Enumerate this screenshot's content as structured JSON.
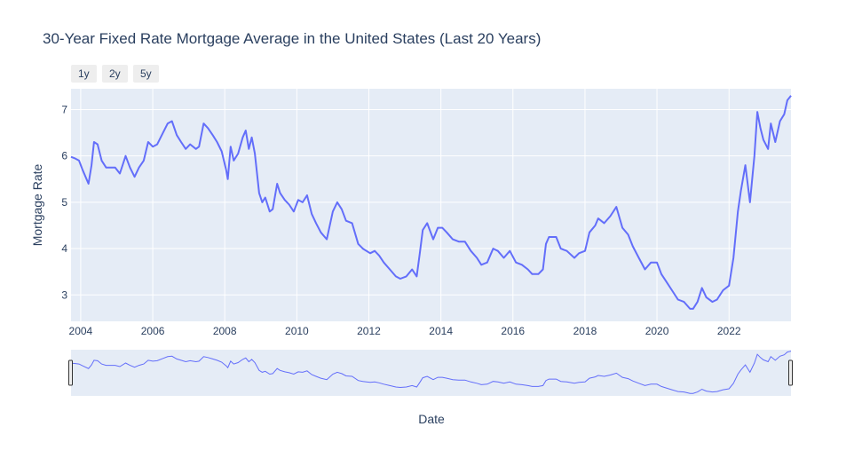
{
  "title": "30-Year Fixed Rate Mortgage Average in the United States (Last 20 Years)",
  "range_buttons": [
    "1y",
    "2y",
    "5y"
  ],
  "colors": {
    "line": "#636efa",
    "plot_bg": "#e5ecf6",
    "grid": "#ffffff",
    "text": "#2a3f5f"
  },
  "chart_data": {
    "type": "line",
    "title": "30-Year Fixed Rate Mortgage Average in the United States (Last 20 Years)",
    "xlabel": "Date",
    "ylabel": "Mortgage Rate",
    "x_ticks": [
      "2004",
      "2006",
      "2008",
      "2010",
      "2012",
      "2014",
      "2016",
      "2018",
      "2020",
      "2022"
    ],
    "y_ticks": [
      3,
      4,
      5,
      6,
      7
    ],
    "xlim": [
      "2003-09-25",
      "2023-09-21"
    ],
    "ylim": [
      2.43,
      7.45
    ],
    "grid": true,
    "range_slider": true,
    "series": [
      {
        "points": [
          [
            "2003-09-25",
            5.98
          ],
          [
            "2003-11-01",
            5.95
          ],
          [
            "2003-12-15",
            5.9
          ],
          [
            "2004-01-20",
            5.7
          ],
          [
            "2004-03-20",
            5.4
          ],
          [
            "2004-04-20",
            5.8
          ],
          [
            "2004-05-15",
            6.3
          ],
          [
            "2004-06-20",
            6.25
          ],
          [
            "2004-08-01",
            5.9
          ],
          [
            "2004-09-15",
            5.75
          ],
          [
            "2004-11-01",
            5.75
          ],
          [
            "2004-12-15",
            5.75
          ],
          [
            "2005-02-01",
            5.62
          ],
          [
            "2005-04-01",
            6.0
          ],
          [
            "2005-05-15",
            5.75
          ],
          [
            "2005-07-01",
            5.55
          ],
          [
            "2005-08-15",
            5.75
          ],
          [
            "2005-10-01",
            5.9
          ],
          [
            "2005-11-15",
            6.3
          ],
          [
            "2006-01-01",
            6.2
          ],
          [
            "2006-02-15",
            6.25
          ],
          [
            "2006-04-15",
            6.5
          ],
          [
            "2006-06-01",
            6.7
          ],
          [
            "2006-07-15",
            6.75
          ],
          [
            "2006-09-01",
            6.45
          ],
          [
            "2006-10-15",
            6.3
          ],
          [
            "2006-12-01",
            6.15
          ],
          [
            "2007-01-15",
            6.25
          ],
          [
            "2007-03-15",
            6.15
          ],
          [
            "2007-04-15",
            6.2
          ],
          [
            "2007-06-01",
            6.7
          ],
          [
            "2007-07-15",
            6.6
          ],
          [
            "2007-09-01",
            6.45
          ],
          [
            "2007-10-15",
            6.3
          ],
          [
            "2007-12-01",
            6.1
          ],
          [
            "2008-01-15",
            5.7
          ],
          [
            "2008-02-01",
            5.5
          ],
          [
            "2008-03-01",
            6.2
          ],
          [
            "2008-04-01",
            5.9
          ],
          [
            "2008-05-15",
            6.05
          ],
          [
            "2008-07-01",
            6.4
          ],
          [
            "2008-08-01",
            6.55
          ],
          [
            "2008-09-01",
            6.15
          ],
          [
            "2008-10-01",
            6.4
          ],
          [
            "2008-11-01",
            6.05
          ],
          [
            "2008-12-15",
            5.2
          ],
          [
            "2009-01-15",
            5.0
          ],
          [
            "2009-02-15",
            5.1
          ],
          [
            "2009-04-01",
            4.8
          ],
          [
            "2009-05-01",
            4.85
          ],
          [
            "2009-06-15",
            5.4
          ],
          [
            "2009-07-15",
            5.2
          ],
          [
            "2009-09-01",
            5.05
          ],
          [
            "2009-10-15",
            4.95
          ],
          [
            "2009-12-01",
            4.8
          ],
          [
            "2010-01-15",
            5.05
          ],
          [
            "2010-03-01",
            5.0
          ],
          [
            "2010-04-15",
            5.15
          ],
          [
            "2010-06-01",
            4.75
          ],
          [
            "2010-07-15",
            4.55
          ],
          [
            "2010-09-01",
            4.35
          ],
          [
            "2010-11-01",
            4.2
          ],
          [
            "2011-01-01",
            4.8
          ],
          [
            "2011-02-15",
            5.0
          ],
          [
            "2011-04-01",
            4.85
          ],
          [
            "2011-05-15",
            4.6
          ],
          [
            "2011-07-15",
            4.55
          ],
          [
            "2011-09-15",
            4.1
          ],
          [
            "2011-11-01",
            4.0
          ],
          [
            "2012-01-15",
            3.9
          ],
          [
            "2012-03-01",
            3.95
          ],
          [
            "2012-04-15",
            3.85
          ],
          [
            "2012-06-01",
            3.7
          ],
          [
            "2012-08-01",
            3.55
          ],
          [
            "2012-10-01",
            3.4
          ],
          [
            "2012-11-15",
            3.35
          ],
          [
            "2013-01-15",
            3.4
          ],
          [
            "2013-03-15",
            3.55
          ],
          [
            "2013-05-01",
            3.4
          ],
          [
            "2013-06-01",
            3.9
          ],
          [
            "2013-07-01",
            4.4
          ],
          [
            "2013-08-15",
            4.55
          ],
          [
            "2013-10-15",
            4.2
          ],
          [
            "2013-12-01",
            4.45
          ],
          [
            "2014-01-15",
            4.45
          ],
          [
            "2014-03-01",
            4.35
          ],
          [
            "2014-05-01",
            4.2
          ],
          [
            "2014-07-01",
            4.15
          ],
          [
            "2014-09-01",
            4.15
          ],
          [
            "2014-11-01",
            3.95
          ],
          [
            "2015-01-01",
            3.8
          ],
          [
            "2015-02-15",
            3.65
          ],
          [
            "2015-04-15",
            3.7
          ],
          [
            "2015-06-15",
            4.0
          ],
          [
            "2015-08-01",
            3.95
          ],
          [
            "2015-10-01",
            3.8
          ],
          [
            "2015-12-01",
            3.95
          ],
          [
            "2016-02-01",
            3.7
          ],
          [
            "2016-04-01",
            3.65
          ],
          [
            "2016-06-01",
            3.55
          ],
          [
            "2016-07-15",
            3.45
          ],
          [
            "2016-09-15",
            3.45
          ],
          [
            "2016-11-01",
            3.55
          ],
          [
            "2016-12-01",
            4.1
          ],
          [
            "2017-01-01",
            4.25
          ],
          [
            "2017-03-15",
            4.25
          ],
          [
            "2017-05-01",
            4.0
          ],
          [
            "2017-07-01",
            3.95
          ],
          [
            "2017-09-15",
            3.8
          ],
          [
            "2017-11-01",
            3.9
          ],
          [
            "2018-01-01",
            3.95
          ],
          [
            "2018-02-15",
            4.35
          ],
          [
            "2018-04-15",
            4.5
          ],
          [
            "2018-05-15",
            4.65
          ],
          [
            "2018-07-15",
            4.55
          ],
          [
            "2018-09-15",
            4.7
          ],
          [
            "2018-11-15",
            4.9
          ],
          [
            "2019-01-15",
            4.45
          ],
          [
            "2019-03-15",
            4.3
          ],
          [
            "2019-05-01",
            4.05
          ],
          [
            "2019-07-01",
            3.8
          ],
          [
            "2019-09-01",
            3.55
          ],
          [
            "2019-11-01",
            3.7
          ],
          [
            "2020-01-01",
            3.7
          ],
          [
            "2020-02-15",
            3.45
          ],
          [
            "2020-04-01",
            3.3
          ],
          [
            "2020-06-01",
            3.1
          ],
          [
            "2020-08-01",
            2.9
          ],
          [
            "2020-10-01",
            2.85
          ],
          [
            "2020-12-01",
            2.7
          ],
          [
            "2021-01-01",
            2.7
          ],
          [
            "2021-02-15",
            2.85
          ],
          [
            "2021-04-01",
            3.15
          ],
          [
            "2021-05-15",
            2.95
          ],
          [
            "2021-07-15",
            2.85
          ],
          [
            "2021-09-01",
            2.9
          ],
          [
            "2021-11-01",
            3.1
          ],
          [
            "2022-01-01",
            3.2
          ],
          [
            "2022-02-15",
            3.8
          ],
          [
            "2022-04-01",
            4.8
          ],
          [
            "2022-05-01",
            5.25
          ],
          [
            "2022-06-15",
            5.8
          ],
          [
            "2022-08-01",
            5.0
          ],
          [
            "2022-09-15",
            6.0
          ],
          [
            "2022-10-15",
            6.95
          ],
          [
            "2022-11-15",
            6.6
          ],
          [
            "2022-12-15",
            6.35
          ],
          [
            "2023-02-01",
            6.15
          ],
          [
            "2023-03-01",
            6.7
          ],
          [
            "2023-04-15",
            6.3
          ],
          [
            "2023-06-01",
            6.75
          ],
          [
            "2023-07-15",
            6.9
          ],
          [
            "2023-08-15",
            7.2
          ],
          [
            "2023-09-21",
            7.3
          ]
        ]
      }
    ]
  }
}
